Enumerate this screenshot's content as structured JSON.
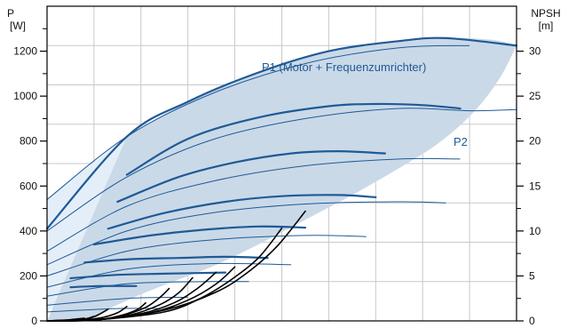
{
  "chart_data": {
    "type": "line",
    "title": "",
    "left_axis": {
      "label_top": "P",
      "label_unit": "[W]",
      "ticks": [
        "0",
        "200",
        "400",
        "600",
        "800",
        "1000",
        "1200"
      ],
      "ylim": [
        0,
        1400
      ]
    },
    "right_axis": {
      "label_top": "NPSH",
      "label_unit": "[m]",
      "ticks": [
        "0",
        "5",
        "10",
        "15",
        "20",
        "25",
        "30"
      ],
      "ylim": [
        0,
        35
      ]
    },
    "x": {
      "xlim": [
        0,
        100
      ],
      "grid_lines": 10,
      "tick_labels": []
    },
    "grid": true,
    "colors": {
      "power": "#1f5a96",
      "power_thin": "#1f5a96",
      "npsh": "#000000",
      "region": "#cad9e8",
      "region_light": "#e4eef8",
      "grid": "#c8c8c8"
    },
    "labels": {
      "p1": "P1 (Motor + Frequenzumrichter)",
      "p2": "P2"
    },
    "region": {
      "upper": [
        [
          17,
          820
        ],
        [
          25,
          920
        ],
        [
          35,
          1020
        ],
        [
          45,
          1105
        ],
        [
          55,
          1170
        ],
        [
          65,
          1215
        ],
        [
          75,
          1245
        ],
        [
          85,
          1260
        ],
        [
          95,
          1250
        ],
        [
          100,
          1225
        ]
      ],
      "lower": [
        [
          100,
          1225
        ],
        [
          97,
          1100
        ],
        [
          93,
          980
        ],
        [
          88,
          870
        ],
        [
          82,
          770
        ],
        [
          75,
          680
        ],
        [
          65,
          560
        ],
        [
          55,
          450
        ],
        [
          45,
          340
        ],
        [
          35,
          240
        ],
        [
          25,
          160
        ],
        [
          18,
          100
        ],
        [
          12,
          40
        ],
        [
          10,
          0
        ],
        [
          0,
          0
        ]
      ],
      "light_upper": [
        [
          0,
          540
        ],
        [
          17,
          820
        ]
      ],
      "light_lower": [
        [
          17,
          820
        ],
        [
          14,
          620
        ],
        [
          11,
          420
        ],
        [
          8,
          250
        ],
        [
          4,
          110
        ],
        [
          0,
          40
        ]
      ]
    },
    "series_thick": [
      {
        "name": "P1 (Motor + Frequenzumrichter)",
        "points": [
          [
            0,
            410
          ],
          [
            17,
            820
          ],
          [
            30,
            975
          ],
          [
            45,
            1105
          ],
          [
            60,
            1200
          ],
          [
            75,
            1245
          ],
          [
            85,
            1258
          ],
          [
            100,
            1225
          ]
        ]
      },
      {
        "points": [
          [
            17,
            650
          ],
          [
            30,
            810
          ],
          [
            45,
            905
          ],
          [
            60,
            955
          ],
          [
            70,
            965
          ],
          [
            80,
            960
          ],
          [
            88,
            945
          ]
        ]
      },
      {
        "points": [
          [
            15,
            530
          ],
          [
            28,
            640
          ],
          [
            40,
            705
          ],
          [
            52,
            745
          ],
          [
            62,
            755
          ],
          [
            72,
            745
          ]
        ]
      },
      {
        "points": [
          [
            13,
            410
          ],
          [
            25,
            480
          ],
          [
            38,
            530
          ],
          [
            50,
            555
          ],
          [
            62,
            560
          ],
          [
            70,
            550
          ]
        ]
      },
      {
        "points": [
          [
            10,
            340
          ],
          [
            22,
            380
          ],
          [
            33,
            405
          ],
          [
            45,
            420
          ],
          [
            55,
            415
          ]
        ]
      },
      {
        "points": [
          [
            8,
            260
          ],
          [
            18,
            275
          ],
          [
            28,
            280
          ],
          [
            38,
            285
          ],
          [
            47,
            280
          ]
        ]
      },
      {
        "points": [
          [
            5,
            190
          ],
          [
            15,
            205
          ],
          [
            25,
            210
          ],
          [
            38,
            215
          ]
        ]
      },
      {
        "points": [
          [
            5,
            150
          ],
          [
            11,
            155
          ],
          [
            19,
            155
          ]
        ]
      }
    ],
    "series_thin": [
      {
        "points": [
          [
            0,
            540
          ],
          [
            17,
            820
          ],
          [
            35,
            1010
          ],
          [
            55,
            1145
          ],
          [
            75,
            1215
          ],
          [
            90,
            1225
          ]
        ]
      },
      {
        "points": [
          [
            0,
            400
          ],
          [
            17,
            640
          ],
          [
            35,
            805
          ],
          [
            55,
            900
          ],
          [
            75,
            945
          ],
          [
            90,
            935
          ],
          [
            100,
            940
          ]
        ]
      },
      {
        "points": [
          [
            0,
            310
          ],
          [
            17,
            510
          ],
          [
            35,
            620
          ],
          [
            55,
            690
          ],
          [
            75,
            720
          ],
          [
            88,
            720
          ]
        ]
      },
      {
        "points": [
          [
            0,
            250
          ],
          [
            17,
            400
          ],
          [
            35,
            480
          ],
          [
            55,
            520
          ],
          [
            75,
            530
          ],
          [
            85,
            525
          ]
        ]
      },
      {
        "points": [
          [
            0,
            200
          ],
          [
            17,
            310
          ],
          [
            35,
            360
          ],
          [
            55,
            380
          ],
          [
            68,
            375
          ]
        ]
      },
      {
        "points": [
          [
            0,
            150
          ],
          [
            17,
            230
          ],
          [
            35,
            255
          ],
          [
            52,
            250
          ]
        ]
      },
      {
        "points": [
          [
            0,
            110
          ],
          [
            17,
            165
          ],
          [
            35,
            175
          ],
          [
            43,
            175
          ]
        ]
      },
      {
        "points": [
          [
            0,
            70
          ],
          [
            17,
            100
          ],
          [
            30,
            105
          ]
        ]
      },
      {
        "points": [
          [
            0,
            40
          ],
          [
            15,
            55
          ],
          [
            24,
            55
          ]
        ]
      }
    ],
    "npsh": [
      {
        "points": [
          [
            0,
            0
          ],
          [
            10,
            0.1
          ],
          [
            25,
            1.2
          ],
          [
            36,
            3.2
          ],
          [
            43,
            5.5
          ],
          [
            49,
            8.3
          ],
          [
            55,
            12.2
          ]
        ]
      },
      {
        "points": [
          [
            0,
            0
          ],
          [
            10,
            0.1
          ],
          [
            25,
            1.0
          ],
          [
            33,
            2.6
          ],
          [
            39,
            4.5
          ],
          [
            45,
            7.0
          ],
          [
            50,
            10.3
          ]
        ]
      },
      {
        "points": [
          [
            0,
            0
          ],
          [
            10,
            0.1
          ],
          [
            22,
            0.9
          ],
          [
            30,
            2.3
          ],
          [
            36,
            4.1
          ],
          [
            40,
            6.0
          ]
        ]
      },
      {
        "points": [
          [
            0,
            0
          ],
          [
            10,
            0.1
          ],
          [
            20,
            0.8
          ],
          [
            27,
            2.0
          ],
          [
            32,
            3.6
          ],
          [
            36,
            5.4
          ]
        ]
      },
      {
        "points": [
          [
            0,
            0
          ],
          [
            10,
            0.1
          ],
          [
            18,
            0.7
          ],
          [
            24,
            1.8
          ],
          [
            28,
            3.1
          ],
          [
            31,
            4.8
          ]
        ]
      },
      {
        "points": [
          [
            0,
            0
          ],
          [
            10,
            0.1
          ],
          [
            16,
            0.6
          ],
          [
            21,
            1.5
          ],
          [
            24,
            2.6
          ],
          [
            26,
            3.6
          ]
        ]
      },
      {
        "points": [
          [
            0,
            0
          ],
          [
            10,
            0.1
          ],
          [
            15,
            0.5
          ],
          [
            19,
            1.2
          ],
          [
            21,
            2.0
          ]
        ]
      },
      {
        "points": [
          [
            0,
            0
          ],
          [
            8,
            0.1
          ],
          [
            12,
            0.4
          ],
          [
            15,
            0.9
          ],
          [
            17,
            1.6
          ]
        ]
      },
      {
        "points": [
          [
            0,
            0
          ],
          [
            6,
            0.1
          ],
          [
            9,
            0.3
          ],
          [
            11,
            0.7
          ],
          [
            13,
            1.3
          ]
        ]
      },
      {
        "points": [
          [
            0,
            0
          ],
          [
            5,
            0.1
          ],
          [
            8,
            0.2
          ],
          [
            10,
            0.5
          ]
        ]
      },
      {
        "points": [
          [
            0,
            0
          ],
          [
            4,
            0.1
          ],
          [
            6,
            0.2
          ],
          [
            8,
            0.3
          ]
        ]
      }
    ]
  }
}
